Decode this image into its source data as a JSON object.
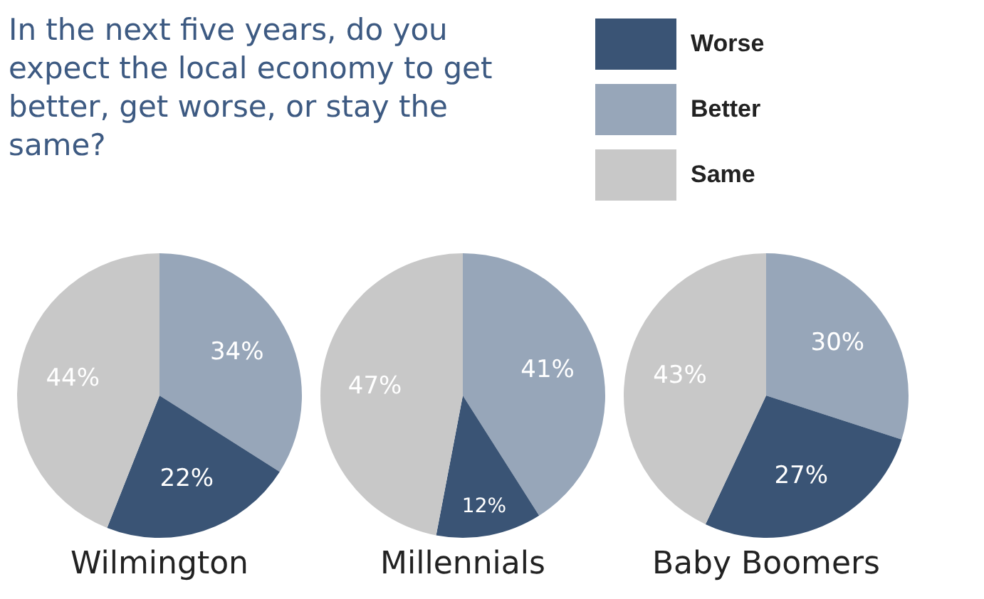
{
  "chart_data": [
    {
      "type": "pie",
      "title": "Wilmington",
      "annotations": [
        "In the next five years, do you expect the local economy to get better, get worse, or stay the same?"
      ],
      "legend": "top right",
      "categories": [
        "Better",
        "Worse",
        "Same"
      ],
      "values": [
        34,
        22,
        44
      ],
      "value_labels": [
        "34%",
        "22%",
        "44%"
      ],
      "colors": [
        "#97a6b9",
        "#3a5475",
        "#c8c8c8"
      ]
    },
    {
      "type": "pie",
      "title": "Millennials",
      "categories": [
        null,
        null,
        null
      ],
      "values": [
        41,
        12,
        47
      ],
      "value_labels": [
        "41%",
        "12%",
        "47%"
      ],
      "colors": [
        "#97a6b9",
        "#3a5475",
        "#c8c8c8"
      ]
    },
    {
      "type": "pie",
      "title": "Baby Boomers",
      "categories": [
        null,
        null,
        null
      ],
      "values": [
        30,
        27,
        43
      ],
      "value_labels": [
        "30%",
        "27%",
        "43%"
      ],
      "colors": [
        "#97a6b9",
        "#3a5475",
        "#c8c8c8"
      ]
    }
  ]
}
